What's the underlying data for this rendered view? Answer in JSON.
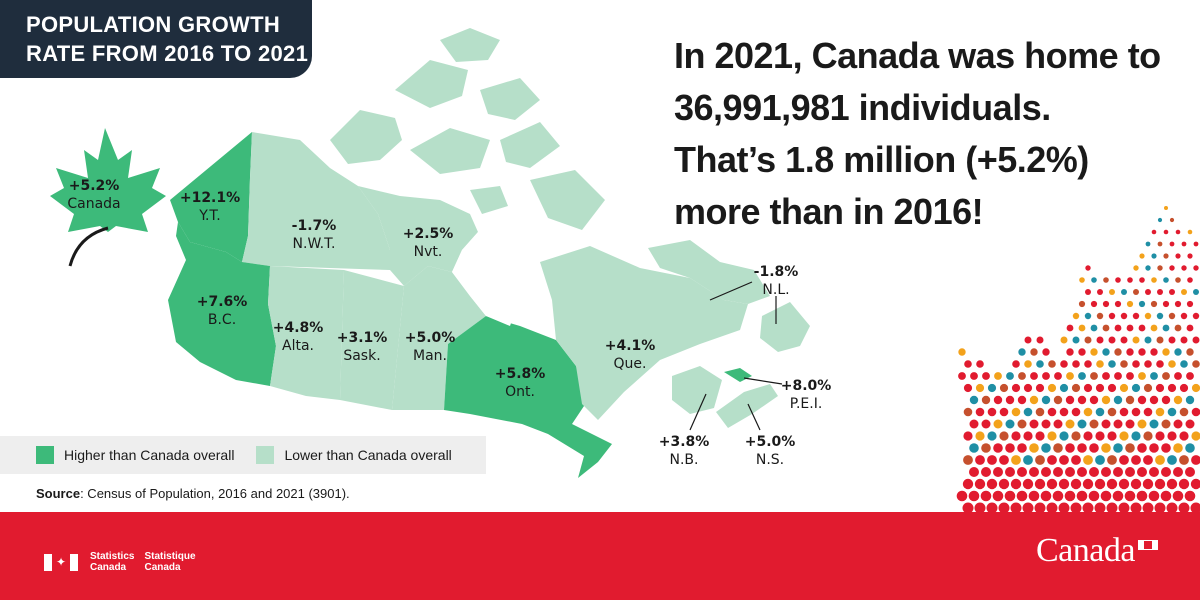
{
  "title_lines": [
    "POPULATION GROWTH",
    "RATE FROM 2016 TO 2021"
  ],
  "headline": [
    "In 2021, Canada was home to",
    "36,991,981 individuals.",
    "That’s 1.8 million (+5.2%)",
    "more than in 2016!"
  ],
  "colors": {
    "higher": "#3dba7a",
    "lower": "#b6dfc9",
    "water": "#ffffff",
    "title_bg": "#1f2d3d",
    "footer_red": "#e11b2f"
  },
  "canada_leaf": {
    "value": "+5.2%",
    "name": "Canada"
  },
  "regions": [
    {
      "id": "yt",
      "value": "+12.1%",
      "name": "Y.T.",
      "category": "higher"
    },
    {
      "id": "nwt",
      "value": "-1.7%",
      "name": "N.W.T.",
      "category": "lower"
    },
    {
      "id": "nvt",
      "value": "+2.5%",
      "name": "Nvt.",
      "category": "lower"
    },
    {
      "id": "bc",
      "value": "+7.6%",
      "name": "B.C.",
      "category": "higher"
    },
    {
      "id": "alta",
      "value": "+4.8%",
      "name": "Alta.",
      "category": "lower"
    },
    {
      "id": "sask",
      "value": "+3.1%",
      "name": "Sask.",
      "category": "lower"
    },
    {
      "id": "man",
      "value": "+5.0%",
      "name": "Man.",
      "category": "lower"
    },
    {
      "id": "ont",
      "value": "+5.8%",
      "name": "Ont.",
      "category": "higher"
    },
    {
      "id": "que",
      "value": "+4.1%",
      "name": "Que.",
      "category": "lower"
    },
    {
      "id": "nl",
      "value": "-1.8%",
      "name": "N.L.",
      "category": "lower"
    },
    {
      "id": "pei",
      "value": "+8.0%",
      "name": "P.E.I.",
      "category": "higher"
    },
    {
      "id": "nb",
      "value": "+3.8%",
      "name": "N.B.",
      "category": "lower"
    },
    {
      "id": "ns",
      "value": "+5.0%",
      "name": "N.S.",
      "category": "lower"
    }
  ],
  "legend": {
    "higher_label": "Higher than Canada overall",
    "lower_label": "Lower than Canada overall"
  },
  "source": {
    "label": "Source",
    "text": ": Census of Population, 2016 and 2021 (3901)."
  },
  "footer": {
    "agency_en": [
      "Statistics",
      "Canada"
    ],
    "agency_fr": [
      "Statistique",
      "Canada"
    ],
    "wordmark": "Canada"
  }
}
